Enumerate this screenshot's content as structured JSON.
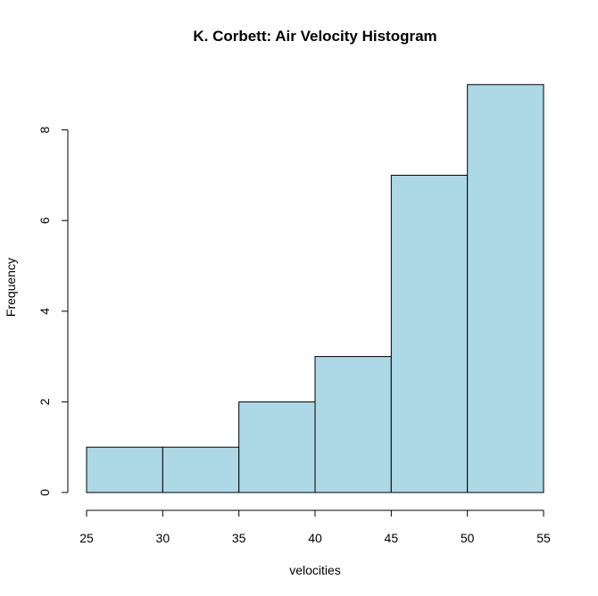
{
  "chart_data": {
    "type": "bar",
    "subtype": "histogram",
    "title": "K. Corbett: Air Velocity Histogram",
    "xlabel": "velocities",
    "ylabel": "Frequency",
    "bins": [
      {
        "from": 25,
        "to": 30,
        "count": 1
      },
      {
        "from": 30,
        "to": 35,
        "count": 1
      },
      {
        "from": 35,
        "to": 40,
        "count": 2
      },
      {
        "from": 40,
        "to": 45,
        "count": 3
      },
      {
        "from": 45,
        "to": 50,
        "count": 7
      },
      {
        "from": 50,
        "to": 55,
        "count": 9
      }
    ],
    "xlim": [
      25,
      55
    ],
    "ylim": [
      0,
      9
    ],
    "xticks": [
      25,
      30,
      35,
      40,
      45,
      50,
      55
    ],
    "yticks": [
      0,
      2,
      4,
      6,
      8
    ],
    "grid": false,
    "legend": "none",
    "bar_color": "#add8e6",
    "edge_color": "#000000"
  }
}
